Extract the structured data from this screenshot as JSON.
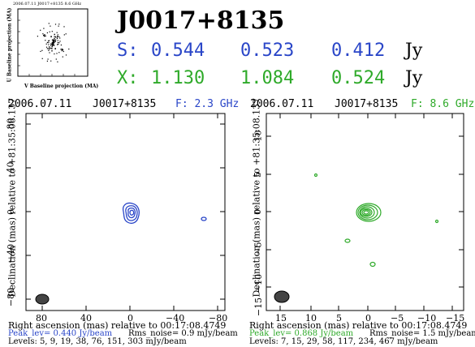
{
  "uv": {
    "header": "2006.07.11  J0017+8135  8.6 GHz",
    "ylabel": "U Baseline projection (MA)",
    "xlabel": "V Baseline projection (MA)"
  },
  "source": "J0017+8135",
  "flux": {
    "s_label": "S:",
    "s_values": [
      "0.544",
      "0.523",
      "0.412"
    ],
    "x_label": "X:",
    "x_values": [
      "1.130",
      "1.084",
      "0.524"
    ],
    "unit": "Jy"
  },
  "colors": {
    "s_band": "#2a46c8",
    "x_band": "#2faa2a"
  },
  "left": {
    "date": "2006.07.11",
    "source": "J0017+8135",
    "freq": "F: 2.3 GHz",
    "yticks": [
      "80",
      "40",
      "0",
      "−40",
      "−80"
    ],
    "xticks": [
      "80",
      "40",
      "0",
      "−40",
      "−80"
    ],
    "xlabel": "Right ascension (mas) relative to 00:17:08.4749",
    "peak": "Peak_lev=  0.440 Jy/beam",
    "rms": "Rms_noise=  0.9 mJy/beam",
    "levels": "Levels:   5,  9,  19,  38,  76, 151, 303 mJy/beam"
  },
  "right": {
    "date": "2006.07.11",
    "source": "J0017+8135",
    "freq": "F: 8.6 GHz",
    "ylabel": "Declination (mas) relative to +81:35:08.137",
    "yticks": [
      "15",
      "10",
      "5",
      "0",
      "−5",
      "−10",
      "−15"
    ],
    "xticks": [
      "15",
      "10",
      "5",
      "0",
      "−5",
      "−10",
      "−15"
    ],
    "xlabel": "Right ascension (mas) relative to 00:17:08.4749",
    "peak": "Peak_lev=  0.868 Jy/beam",
    "rms": "Rms_noise=  1.5 mJy/beam",
    "levels": "Levels:   7,  15,  29,  58, 117, 234, 467 mJy/beam"
  }
}
